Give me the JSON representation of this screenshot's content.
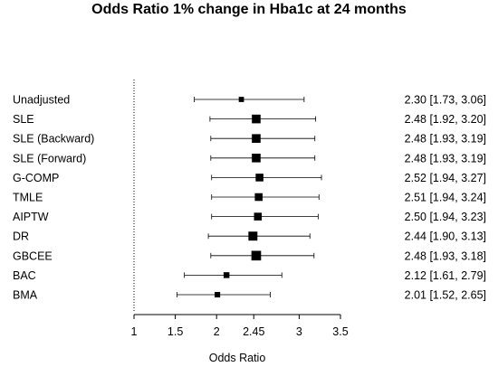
{
  "chart_data": {
    "type": "forest",
    "title": "Odds Ratio 1% change in Hba1c at 24 months",
    "xlabel": "Odds Ratio",
    "xlim": [
      1,
      3.5
    ],
    "xticks": [
      1,
      1.5,
      2,
      2.45,
      3,
      3.5
    ],
    "xtick_labels": [
      "1",
      "1.5",
      "2",
      "2.45",
      "3",
      "3.5"
    ],
    "reference_line": 1,
    "rows": [
      {
        "label": "Unadjusted",
        "estimate": 2.3,
        "lower": 1.73,
        "upper": 3.06,
        "ci_text": "2.30 [1.73, 3.06]",
        "weight": 0.25
      },
      {
        "label": "SLE",
        "estimate": 2.48,
        "lower": 1.92,
        "upper": 3.2,
        "ci_text": "2.48 [1.92, 3.20]",
        "weight": 0.8
      },
      {
        "label": "SLE (Backward)",
        "estimate": 2.48,
        "lower": 1.93,
        "upper": 3.19,
        "ci_text": "2.48 [1.93, 3.19]",
        "weight": 0.8
      },
      {
        "label": "SLE (Forward)",
        "estimate": 2.48,
        "lower": 1.93,
        "upper": 3.19,
        "ci_text": "2.48 [1.93, 3.19]",
        "weight": 0.8
      },
      {
        "label": "G-COMP",
        "estimate": 2.52,
        "lower": 1.94,
        "upper": 3.27,
        "ci_text": "2.52 [1.94, 3.27]",
        "weight": 0.65
      },
      {
        "label": "TMLE",
        "estimate": 2.51,
        "lower": 1.94,
        "upper": 3.24,
        "ci_text": "2.51 [1.94, 3.24]",
        "weight": 0.65
      },
      {
        "label": "AIPTW",
        "estimate": 2.5,
        "lower": 1.94,
        "upper": 3.23,
        "ci_text": "2.50 [1.94, 3.23]",
        "weight": 0.65
      },
      {
        "label": "DR",
        "estimate": 2.44,
        "lower": 1.9,
        "upper": 3.13,
        "ci_text": "2.44 [1.90, 3.13]",
        "weight": 0.85
      },
      {
        "label": "GBCEE",
        "estimate": 2.48,
        "lower": 1.93,
        "upper": 3.18,
        "ci_text": "2.48 [1.93, 3.18]",
        "weight": 0.95
      },
      {
        "label": "BAC",
        "estimate": 2.12,
        "lower": 1.61,
        "upper": 2.79,
        "ci_text": "2.12 [1.61, 2.79]",
        "weight": 0.35
      },
      {
        "label": "BMA",
        "estimate": 2.01,
        "lower": 1.52,
        "upper": 2.65,
        "ci_text": "2.01 [1.52, 2.65]",
        "weight": 0.3
      }
    ]
  }
}
